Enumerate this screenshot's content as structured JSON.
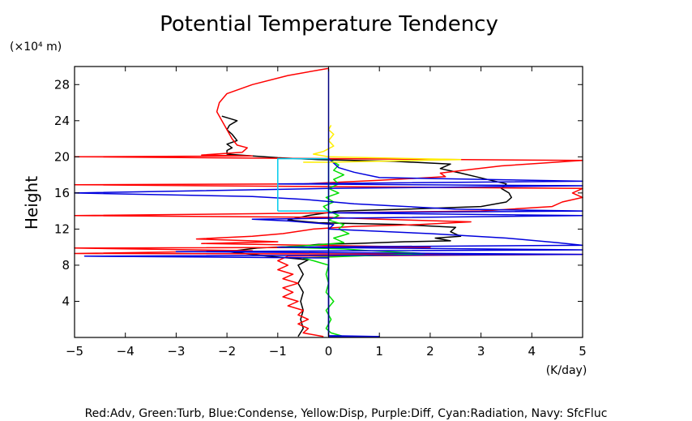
{
  "chart_data": {
    "type": "line",
    "title": "Potential Temperature Tendency",
    "ylabel": "Height",
    "y_unit_label": "(×10⁴ m)",
    "xlabel": "(K/day)",
    "footer": "Red:Adv, Green:Turb, Blue:Condense, Yellow:Disp, Purple:Diff, Cyan:Radiation, Navy: SfcFluc",
    "xlim": [
      -5,
      5
    ],
    "ylim": [
      0,
      30
    ],
    "xticks": [
      -5,
      -4,
      -3,
      -2,
      -1,
      0,
      1,
      2,
      3,
      4,
      5
    ],
    "yticks": [
      4,
      8,
      12,
      16,
      20,
      24,
      28
    ],
    "grid": false,
    "series": [
      {
        "color": "#000000",
        "points": [
          [
            -0.6,
            0.1
          ],
          [
            -0.5,
            1
          ],
          [
            -0.55,
            2
          ],
          [
            -0.5,
            3
          ],
          [
            -0.55,
            4
          ],
          [
            -0.5,
            5
          ],
          [
            -0.6,
            6
          ],
          [
            -0.5,
            7
          ],
          [
            -0.6,
            8
          ],
          [
            -0.4,
            8.6
          ],
          [
            -1.2,
            9
          ],
          [
            -2.0,
            9.5
          ],
          [
            -1.4,
            9.9
          ],
          [
            -0.6,
            10.1
          ],
          [
            -0.2,
            10.3
          ],
          [
            0.5,
            10.4
          ],
          [
            1.5,
            10.6
          ],
          [
            2.4,
            10.7
          ],
          [
            2.1,
            11
          ],
          [
            2.6,
            11.2
          ],
          [
            2.4,
            11.7
          ],
          [
            2.5,
            12.2
          ],
          [
            1.4,
            12.5
          ],
          [
            -0.2,
            12.7
          ],
          [
            -0.8,
            13.0
          ],
          [
            -0.4,
            13.5
          ],
          [
            0.2,
            14
          ],
          [
            1.5,
            14.2
          ],
          [
            3.0,
            14.5
          ],
          [
            3.5,
            15
          ],
          [
            3.6,
            15.5
          ],
          [
            3.55,
            16
          ],
          [
            3.4,
            16.5
          ],
          [
            3.5,
            17
          ],
          [
            3.2,
            17.4
          ],
          [
            2.9,
            17.8
          ],
          [
            2.6,
            18.2
          ],
          [
            2.2,
            18.7
          ],
          [
            2.4,
            19.2
          ],
          [
            1.3,
            19.5
          ],
          [
            -0.2,
            19.7
          ],
          [
            -1.0,
            19.9
          ],
          [
            -1.5,
            20.1
          ],
          [
            -2.0,
            20.3
          ],
          [
            -2.0,
            20.7
          ],
          [
            -1.9,
            21
          ],
          [
            -2.0,
            21.4
          ],
          [
            -1.8,
            21.8
          ],
          [
            -1.9,
            22.5
          ],
          [
            -2.0,
            23
          ],
          [
            -1.95,
            23.5
          ],
          [
            -1.8,
            24
          ],
          [
            -2.1,
            24.5
          ]
        ]
      },
      {
        "color": "#ff0000",
        "points": [
          [
            -0.1,
            0.1
          ],
          [
            -0.5,
            0.5
          ],
          [
            -0.4,
            1
          ],
          [
            -0.6,
            1.5
          ],
          [
            -0.4,
            2
          ],
          [
            -0.6,
            2.5
          ],
          [
            -0.5,
            3
          ],
          [
            -0.8,
            3.5
          ],
          [
            -0.6,
            4
          ],
          [
            -0.9,
            4.5
          ],
          [
            -0.7,
            5
          ],
          [
            -0.9,
            5.5
          ],
          [
            -0.6,
            6
          ],
          [
            -0.9,
            6.5
          ],
          [
            -0.7,
            7
          ],
          [
            -1.0,
            7.5
          ],
          [
            -0.8,
            8
          ],
          [
            -1.0,
            8.5
          ],
          [
            -0.8,
            9
          ],
          [
            5.0,
            9.2
          ],
          [
            -5.0,
            9.3
          ],
          [
            -1.5,
            9.6
          ],
          [
            -5.0,
            9.9
          ],
          [
            2.0,
            10.0
          ],
          [
            -2.5,
            10.4
          ],
          [
            -1.0,
            10.6
          ],
          [
            -2.6,
            10.9
          ],
          [
            -1.5,
            11.2
          ],
          [
            -0.9,
            11.5
          ],
          [
            -0.3,
            12
          ],
          [
            0.5,
            12.3
          ],
          [
            1.8,
            12.5
          ],
          [
            2.8,
            12.8
          ],
          [
            1.0,
            13.1
          ],
          [
            0.0,
            13.3
          ],
          [
            -5.0,
            13.5
          ],
          [
            -1.5,
            13.7
          ],
          [
            3.0,
            14.0
          ],
          [
            4.4,
            14.5
          ],
          [
            4.6,
            15.0
          ],
          [
            5.0,
            15.5
          ],
          [
            4.8,
            16.0
          ],
          [
            5.0,
            16.5
          ],
          [
            -5.0,
            16.9
          ],
          [
            -0.5,
            17.0
          ],
          [
            1.0,
            17.4
          ],
          [
            2.3,
            17.8
          ],
          [
            2.2,
            18.2
          ],
          [
            2.8,
            18.6
          ],
          [
            3.4,
            19.0
          ],
          [
            5.0,
            19.6
          ],
          [
            -5.0,
            20.0
          ],
          [
            -1.5,
            20.1
          ],
          [
            -2.5,
            20.2
          ],
          [
            -1.7,
            20.5
          ],
          [
            -1.6,
            21.0
          ],
          [
            -1.8,
            21.3
          ],
          [
            -1.9,
            22
          ],
          [
            -2.0,
            23
          ],
          [
            -2.1,
            24
          ],
          [
            -2.2,
            25
          ],
          [
            -2.15,
            26
          ],
          [
            -2.0,
            27
          ],
          [
            -1.5,
            28
          ],
          [
            -0.8,
            29
          ],
          [
            0,
            29.8
          ]
        ]
      },
      {
        "color": "#00dd00",
        "points": [
          [
            0.3,
            0.1
          ],
          [
            0.05,
            0.5
          ],
          [
            -0.05,
            1
          ],
          [
            0.05,
            2
          ],
          [
            -0.05,
            3
          ],
          [
            0.1,
            4
          ],
          [
            -0.05,
            5
          ],
          [
            0.0,
            6
          ],
          [
            -0.05,
            7
          ],
          [
            0.0,
            8
          ],
          [
            -0.3,
            8.5
          ],
          [
            -0.5,
            8.8
          ],
          [
            0.5,
            9.0
          ],
          [
            1.9,
            9.3
          ],
          [
            0.8,
            9.6
          ],
          [
            0.3,
            9.8
          ],
          [
            -1.0,
            10.0
          ],
          [
            -0.3,
            10.2
          ],
          [
            0.3,
            10.5
          ],
          [
            0.1,
            11
          ],
          [
            0.4,
            11.5
          ],
          [
            0.2,
            12
          ],
          [
            0.3,
            12.5
          ],
          [
            0.0,
            13
          ],
          [
            0.2,
            13.5
          ],
          [
            0.0,
            14
          ],
          [
            -0.1,
            14.5
          ],
          [
            0.1,
            15
          ],
          [
            -0.05,
            15.5
          ],
          [
            0.2,
            16
          ],
          [
            0.0,
            16.5
          ],
          [
            0.2,
            17
          ],
          [
            0.1,
            17.5
          ],
          [
            0.3,
            18
          ],
          [
            0.1,
            18.5
          ],
          [
            0.2,
            19.1
          ],
          [
            0.05,
            19.6
          ]
        ]
      },
      {
        "color": "#0000dd",
        "points": [
          [
            0.0,
            0.1
          ],
          [
            1.0,
            0.1
          ],
          [
            0.0,
            0.2
          ],
          [
            0.0,
            8.8
          ],
          [
            -4.8,
            9.0
          ],
          [
            5.0,
            9.2
          ],
          [
            -3.0,
            9.5
          ],
          [
            5.0,
            9.7
          ],
          [
            -1.0,
            10.0
          ],
          [
            5.0,
            10.2
          ],
          [
            4.5,
            10.5
          ],
          [
            3.5,
            11
          ],
          [
            2.0,
            11.5
          ],
          [
            0.0,
            12.0
          ],
          [
            0.1,
            12.5
          ],
          [
            -0.8,
            12.9
          ],
          [
            -1.5,
            13.1
          ],
          [
            5.0,
            13.5
          ],
          [
            0.0,
            13.8
          ],
          [
            5.0,
            14.0
          ],
          [
            2.5,
            14.2
          ],
          [
            0.5,
            14.8
          ],
          [
            -0.5,
            15.3
          ],
          [
            -1.5,
            15.6
          ],
          [
            -5.0,
            16.0
          ],
          [
            0.0,
            16.5
          ],
          [
            5.0,
            16.8
          ],
          [
            -1.0,
            17.0
          ],
          [
            5.0,
            17.3
          ],
          [
            1.0,
            17.7
          ],
          [
            0.5,
            18.3
          ],
          [
            0.2,
            18.8
          ],
          [
            0.1,
            19.3
          ],
          [
            0.0,
            19.8
          ]
        ]
      },
      {
        "color": "#ffee00",
        "points": [
          [
            -0.5,
            19.4
          ],
          [
            0.0,
            19.4
          ],
          [
            2.6,
            19.7
          ],
          [
            0.0,
            20.0
          ],
          [
            -0.3,
            20.3
          ],
          [
            -0.1,
            20.6
          ],
          [
            0.1,
            21.2
          ],
          [
            0.0,
            21.8
          ],
          [
            0.1,
            22.5
          ],
          [
            0.0,
            23
          ],
          [
            0.05,
            23.5
          ]
        ]
      },
      {
        "color": "#00ccee",
        "points": [
          [
            -1.0,
            14.0
          ],
          [
            -1.0,
            19.8
          ],
          [
            0.0,
            19.8
          ],
          [
            0.0,
            14.0
          ],
          [
            -1.0,
            14.0
          ]
        ]
      },
      {
        "color": "#000080",
        "points": [
          [
            0.0,
            0.1
          ],
          [
            0.0,
            29.8
          ]
        ]
      }
    ]
  }
}
